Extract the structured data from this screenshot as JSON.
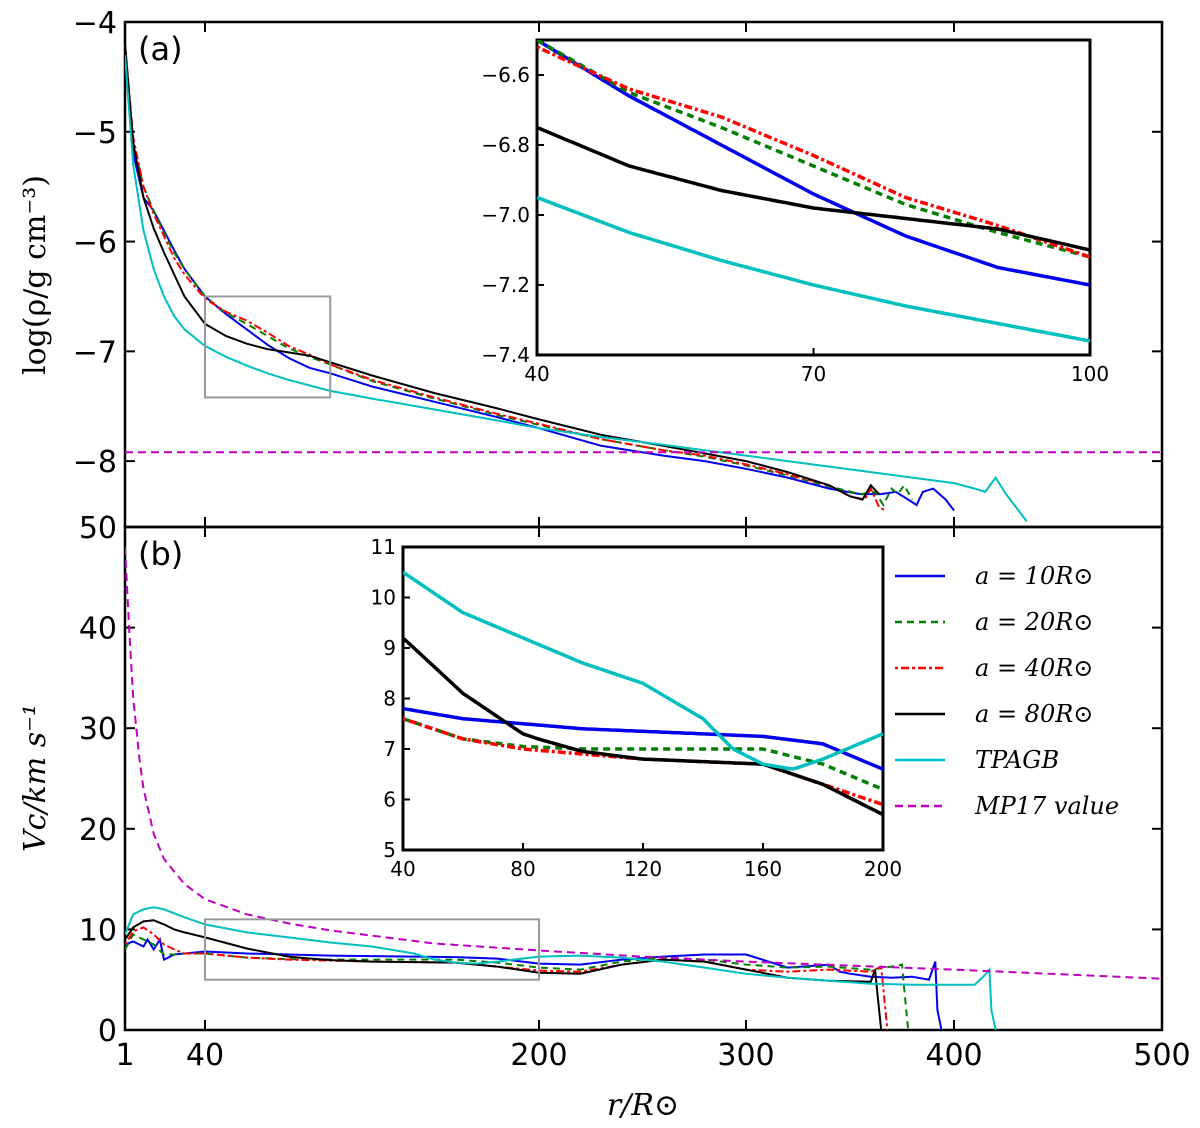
{
  "chart_data": [
    {
      "id": "a",
      "type": "line",
      "panel_label": "(a)",
      "xlabel": "r/R_sun",
      "ylabel": "log(ρ/g cm⁻³)",
      "xlim": [
        1,
        500
      ],
      "ylim": [
        -8.6,
        -4
      ],
      "yticks": [
        -4,
        -5,
        -6,
        -7,
        -8
      ],
      "ytick_labels": [
        "−4",
        "−5",
        "−6",
        "−7",
        "−8"
      ],
      "series": [
        {
          "name": "a=10R_sun",
          "color": "#0000ee",
          "dash": "",
          "x": [
            1,
            5,
            10,
            15,
            20,
            25,
            30,
            40,
            50,
            60,
            70,
            80,
            90,
            100,
            120,
            150,
            180,
            200,
            230,
            260,
            280,
            300,
            320,
            340,
            355,
            365,
            372,
            378,
            382,
            385,
            390,
            396,
            400
          ],
          "y": [
            -4.2,
            -5.2,
            -5.6,
            -5.72,
            -5.9,
            -6.08,
            -6.25,
            -6.5,
            -6.66,
            -6.8,
            -6.94,
            -7.06,
            -7.15,
            -7.2,
            -7.32,
            -7.46,
            -7.6,
            -7.7,
            -7.86,
            -7.95,
            -8.0,
            -8.07,
            -8.15,
            -8.25,
            -8.3,
            -8.3,
            -8.28,
            -8.35,
            -8.4,
            -8.28,
            -8.25,
            -8.35,
            -8.45
          ]
        },
        {
          "name": "a=20R_sun",
          "color": "#007f00",
          "dash": "7,5",
          "x": [
            1,
            5,
            10,
            15,
            20,
            25,
            30,
            40,
            50,
            60,
            70,
            80,
            90,
            100,
            120,
            150,
            180,
            200,
            230,
            260,
            280,
            300,
            320,
            340,
            355,
            362,
            366,
            370,
            373,
            376,
            380
          ],
          "y": [
            -4.2,
            -5.1,
            -5.5,
            -5.72,
            -5.92,
            -6.1,
            -6.25,
            -6.5,
            -6.65,
            -6.75,
            -6.86,
            -6.97,
            -7.05,
            -7.12,
            -7.27,
            -7.43,
            -7.58,
            -7.67,
            -7.8,
            -7.9,
            -7.96,
            -8.04,
            -8.13,
            -8.23,
            -8.3,
            -8.28,
            -8.4,
            -8.25,
            -8.3,
            -8.22,
            -8.35
          ]
        },
        {
          "name": "a=40R_sun",
          "color": "#ff0000",
          "dash": "3,3,8,3",
          "x": [
            1,
            5,
            10,
            15,
            20,
            25,
            30,
            40,
            50,
            60,
            70,
            80,
            90,
            100,
            120,
            150,
            180,
            200,
            230,
            260,
            280,
            300,
            320,
            340,
            350,
            357,
            360,
            364,
            367
          ],
          "y": [
            -4.2,
            -5.05,
            -5.5,
            -5.75,
            -5.95,
            -6.15,
            -6.3,
            -6.52,
            -6.64,
            -6.72,
            -6.83,
            -6.95,
            -7.03,
            -7.12,
            -7.26,
            -7.42,
            -7.57,
            -7.66,
            -7.8,
            -7.9,
            -7.95,
            -8.03,
            -8.12,
            -8.22,
            -8.32,
            -8.35,
            -8.25,
            -8.42,
            -8.45
          ]
        },
        {
          "name": "a=80R_sun",
          "color": "#000000",
          "dash": "",
          "x": [
            1,
            5,
            10,
            15,
            20,
            25,
            30,
            40,
            50,
            60,
            70,
            80,
            90,
            100,
            120,
            150,
            180,
            200,
            230,
            260,
            280,
            300,
            320,
            340,
            350,
            356,
            360,
            364
          ],
          "y": [
            -4.2,
            -5.1,
            -5.6,
            -5.88,
            -6.1,
            -6.3,
            -6.5,
            -6.75,
            -6.86,
            -6.93,
            -6.98,
            -7.01,
            -7.04,
            -7.1,
            -7.22,
            -7.38,
            -7.52,
            -7.62,
            -7.76,
            -7.86,
            -7.93,
            -8.0,
            -8.1,
            -8.22,
            -8.32,
            -8.35,
            -8.22,
            -8.3
          ]
        },
        {
          "name": "TPAGB",
          "color": "#00bfbf",
          "dash": "",
          "x": [
            1,
            5,
            10,
            15,
            20,
            25,
            30,
            40,
            50,
            60,
            70,
            80,
            90,
            100,
            120,
            150,
            180,
            200,
            230,
            260,
            280,
            300,
            320,
            340,
            360,
            380,
            400,
            410,
            415,
            420,
            425,
            435
          ],
          "y": [
            -4.3,
            -5.3,
            -5.9,
            -6.25,
            -6.5,
            -6.68,
            -6.8,
            -6.95,
            -7.05,
            -7.13,
            -7.2,
            -7.26,
            -7.31,
            -7.36,
            -7.43,
            -7.53,
            -7.63,
            -7.7,
            -7.78,
            -7.85,
            -7.9,
            -7.95,
            -8.0,
            -8.05,
            -8.1,
            -8.15,
            -8.2,
            -8.25,
            -8.28,
            -8.15,
            -8.3,
            -8.55
          ]
        },
        {
          "name": "MP17 value",
          "color": "#bf00bf",
          "dash": "8,5",
          "x": [
            1,
            500
          ],
          "y": [
            -7.92,
            -7.92
          ]
        }
      ],
      "inset": {
        "xlim": [
          40,
          100
        ],
        "ylim": [
          -7.4,
          -6.5
        ],
        "xticks": [
          40,
          70,
          100
        ],
        "yticks": [
          -6.6,
          -6.8,
          -7.0,
          -7.2,
          -7.4
        ],
        "ytick_labels": [
          "−6.6",
          "−6.8",
          "−7.0",
          "−7.2",
          "−7.4"
        ],
        "zoom_box": {
          "x": [
            40,
            100
          ],
          "y": [
            -7.42,
            -6.5
          ]
        }
      }
    },
    {
      "id": "b",
      "type": "line",
      "panel_label": "(b)",
      "xlabel": "r/R_sun",
      "ylabel": "V_c/km s⁻¹",
      "xlim": [
        1,
        500
      ],
      "ylim": [
        0,
        50
      ],
      "yticks": [
        0,
        10,
        20,
        30,
        40,
        50
      ],
      "xticks": [
        1,
        40,
        200,
        300,
        400,
        500
      ],
      "series": [
        {
          "name": "a=10R_sun",
          "color": "#0000ee",
          "dash": "",
          "x": [
            1,
            5,
            10,
            12,
            15,
            18,
            20,
            22,
            25,
            30,
            40,
            60,
            80,
            100,
            120,
            140,
            160,
            180,
            200,
            220,
            240,
            260,
            280,
            300,
            320,
            340,
            345,
            350,
            360,
            370,
            380,
            388,
            391,
            392,
            394
          ],
          "y": [
            8.5,
            8.8,
            8.3,
            9.0,
            8.0,
            9.0,
            7.0,
            7.2,
            7.5,
            7.6,
            7.8,
            7.6,
            7.5,
            7.4,
            7.35,
            7.3,
            7.25,
            7.1,
            6.6,
            6.5,
            7.0,
            7.3,
            7.5,
            7.5,
            6.2,
            6.5,
            5.8,
            5.6,
            5.3,
            5.2,
            5.3,
            5.0,
            6.8,
            2.0,
            0
          ]
        },
        {
          "name": "a=20R_sun",
          "color": "#007f00",
          "dash": "7,5",
          "x": [
            1,
            5,
            10,
            15,
            20,
            25,
            30,
            40,
            60,
            80,
            100,
            120,
            140,
            160,
            180,
            200,
            220,
            240,
            260,
            280,
            300,
            320,
            340,
            360,
            370,
            375,
            377,
            378
          ],
          "y": [
            8.0,
            9.5,
            9.0,
            8.5,
            7.5,
            7.5,
            7.6,
            7.6,
            7.2,
            7.05,
            7.0,
            7.0,
            7.0,
            7.0,
            6.7,
            6.2,
            6.0,
            6.8,
            7.2,
            7.0,
            6.5,
            6.2,
            6.3,
            6.0,
            6.3,
            6.5,
            2.0,
            0
          ]
        },
        {
          "name": "a=40R_sun",
          "color": "#ff0000",
          "dash": "3,3,8,3",
          "x": [
            1,
            5,
            10,
            15,
            20,
            25,
            30,
            40,
            60,
            80,
            100,
            120,
            140,
            160,
            180,
            200,
            220,
            240,
            260,
            280,
            300,
            320,
            340,
            360,
            365,
            367,
            368
          ],
          "y": [
            8.5,
            9.8,
            10.2,
            9.5,
            8.5,
            8.0,
            7.6,
            7.6,
            7.2,
            7.0,
            6.9,
            6.8,
            6.75,
            6.7,
            6.3,
            5.9,
            5.8,
            6.5,
            7.0,
            6.8,
            6.0,
            5.8,
            6.0,
            5.8,
            6.3,
            2.0,
            0
          ]
        },
        {
          "name": "a=80R_sun",
          "color": "#000000",
          "dash": "",
          "x": [
            1,
            5,
            10,
            15,
            20,
            25,
            30,
            40,
            60,
            80,
            85,
            100,
            120,
            140,
            160,
            180,
            200,
            220,
            240,
            260,
            280,
            300,
            320,
            340,
            360,
            362,
            364,
            365
          ],
          "y": [
            9.0,
            10.2,
            10.8,
            10.9,
            10.5,
            10.0,
            9.7,
            9.2,
            8.1,
            7.3,
            7.2,
            6.95,
            6.8,
            6.75,
            6.7,
            6.3,
            5.7,
            5.6,
            6.5,
            7.0,
            6.8,
            6.0,
            5.2,
            4.9,
            4.8,
            6.0,
            2.0,
            0
          ]
        },
        {
          "name": "TPAGB",
          "color": "#00bfbf",
          "dash": "",
          "x": [
            1,
            5,
            10,
            15,
            20,
            25,
            30,
            40,
            60,
            80,
            100,
            120,
            140,
            150,
            160,
            170,
            180,
            200,
            220,
            240,
            260,
            280,
            300,
            320,
            340,
            360,
            380,
            400,
            410,
            415,
            417,
            418,
            420
          ],
          "y": [
            9.5,
            11.5,
            12.0,
            12.2,
            12.0,
            11.6,
            11.2,
            10.5,
            9.7,
            9.2,
            8.7,
            8.3,
            7.6,
            7.0,
            6.7,
            6.6,
            6.8,
            7.3,
            7.4,
            7.2,
            6.8,
            6.2,
            5.6,
            5.2,
            4.9,
            4.6,
            4.5,
            4.5,
            4.5,
            5.5,
            6.0,
            2.0,
            0
          ]
        },
        {
          "name": "MP17 value",
          "color": "#bf00bf",
          "dash": "8,5",
          "x": [
            1,
            3,
            5,
            8,
            10,
            15,
            20,
            30,
            40,
            60,
            80,
            100,
            150,
            200,
            250,
            300,
            400,
            500
          ],
          "y": [
            48,
            40,
            33,
            27,
            24,
            19.5,
            17,
            14.5,
            13,
            11.5,
            10.6,
            9.9,
            8.6,
            7.9,
            7.3,
            6.8,
            6.0,
            5.1
          ]
        }
      ],
      "inset": {
        "xlim": [
          40,
          200
        ],
        "ylim": [
          5,
          11
        ],
        "xticks": [
          40,
          80,
          120,
          160,
          200
        ],
        "yticks": [
          5,
          6,
          7,
          8,
          9,
          10,
          11
        ],
        "zoom_box": {
          "x": [
            40,
            200
          ],
          "y": [
            5,
            11
          ]
        }
      }
    }
  ],
  "legend": {
    "placement": "right",
    "entries": [
      {
        "label": "a = 10R⊙",
        "series": "a=10R_sun"
      },
      {
        "label": "a = 20R⊙",
        "series": "a=20R_sun"
      },
      {
        "label": "a = 40R⊙",
        "series": "a=40R_sun"
      },
      {
        "label": "a = 80R⊙",
        "series": "a=80R_sun"
      },
      {
        "label": "TPAGB",
        "series": "TPAGB"
      },
      {
        "label": "MP17 value",
        "series": "MP17 value"
      }
    ]
  },
  "axis_labels": {
    "x": "r/R⊙",
    "y_top": "log(ρ/g cm⁻³)",
    "y_bottom": "Vc/km s⁻¹"
  },
  "x_tick_labels": [
    "1",
    "40",
    "200",
    "300",
    "400",
    "500"
  ]
}
